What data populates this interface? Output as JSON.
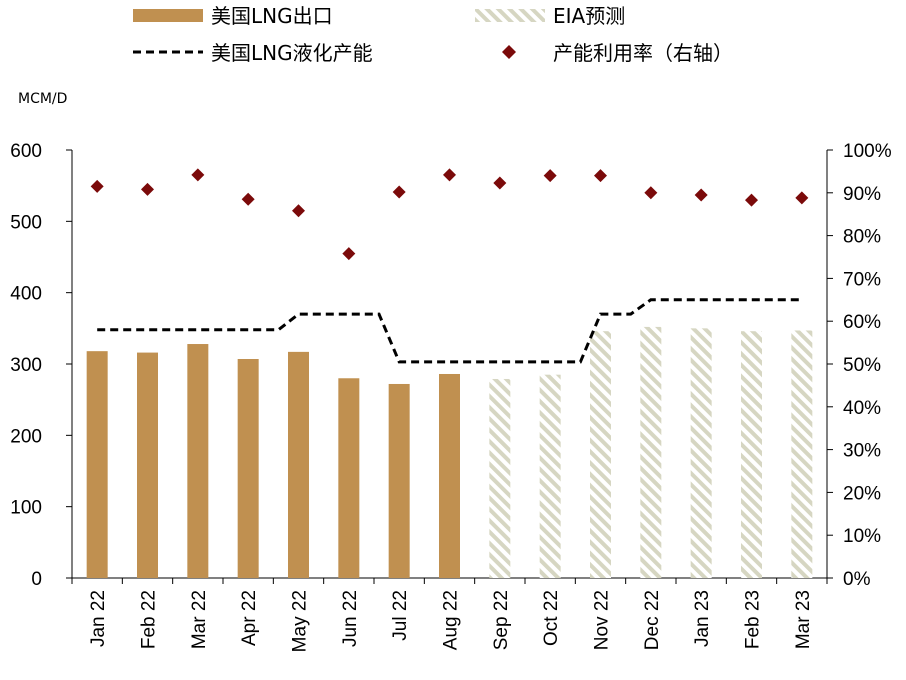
{
  "chart_data": {
    "type": "bar",
    "unit_label": "MCM/D",
    "categories": [
      "Jan 22",
      "Feb 22",
      "Mar 22",
      "Apr 22",
      "May 22",
      "Jun 22",
      "Jul 22",
      "Aug 22",
      "Sep 22",
      "Oct 22",
      "Nov 22",
      "Dec 22",
      "Jan 23",
      "Feb 23",
      "Mar 23"
    ],
    "series": [
      {
        "name": "美国LNG出口",
        "kind": "bar",
        "axis": "left",
        "color": "#C09050",
        "values": [
          318,
          316,
          328,
          307,
          317,
          280,
          272,
          286,
          null,
          null,
          null,
          null,
          null,
          null,
          null
        ]
      },
      {
        "name": "EIA预测",
        "kind": "bar-hatched",
        "axis": "left",
        "color": "#D9D9C8",
        "values": [
          null,
          null,
          null,
          null,
          null,
          null,
          null,
          null,
          279,
          285,
          346,
          352,
          350,
          346,
          347
        ]
      },
      {
        "name": "美国LNG液化产能",
        "kind": "line-dashed",
        "axis": "left",
        "color": "#000000",
        "values": [
          348,
          348,
          348,
          348,
          370,
          370,
          303,
          303,
          303,
          303,
          370,
          390,
          390,
          390,
          390
        ]
      },
      {
        "name": "产能利用率（右轴）",
        "kind": "scatter-diamond",
        "axis": "right",
        "color": "#7B0A0A",
        "values": [
          91.5,
          90.8,
          94.2,
          88.5,
          85.8,
          75.8,
          90.2,
          94.2,
          92.3,
          94.0,
          94.0,
          90.0,
          89.5,
          88.3,
          88.8
        ]
      }
    ],
    "y_left": {
      "min": 0,
      "max": 600,
      "ticks": [
        "0",
        "100",
        "200",
        "300",
        "400",
        "500",
        "600"
      ]
    },
    "y_right": {
      "min": 0,
      "max": 100,
      "ticks": [
        "0%",
        "10%",
        "20%",
        "30%",
        "40%",
        "50%",
        "60%",
        "70%",
        "80%",
        "90%",
        "100%"
      ]
    },
    "legend_placement": "top",
    "grid": false
  }
}
